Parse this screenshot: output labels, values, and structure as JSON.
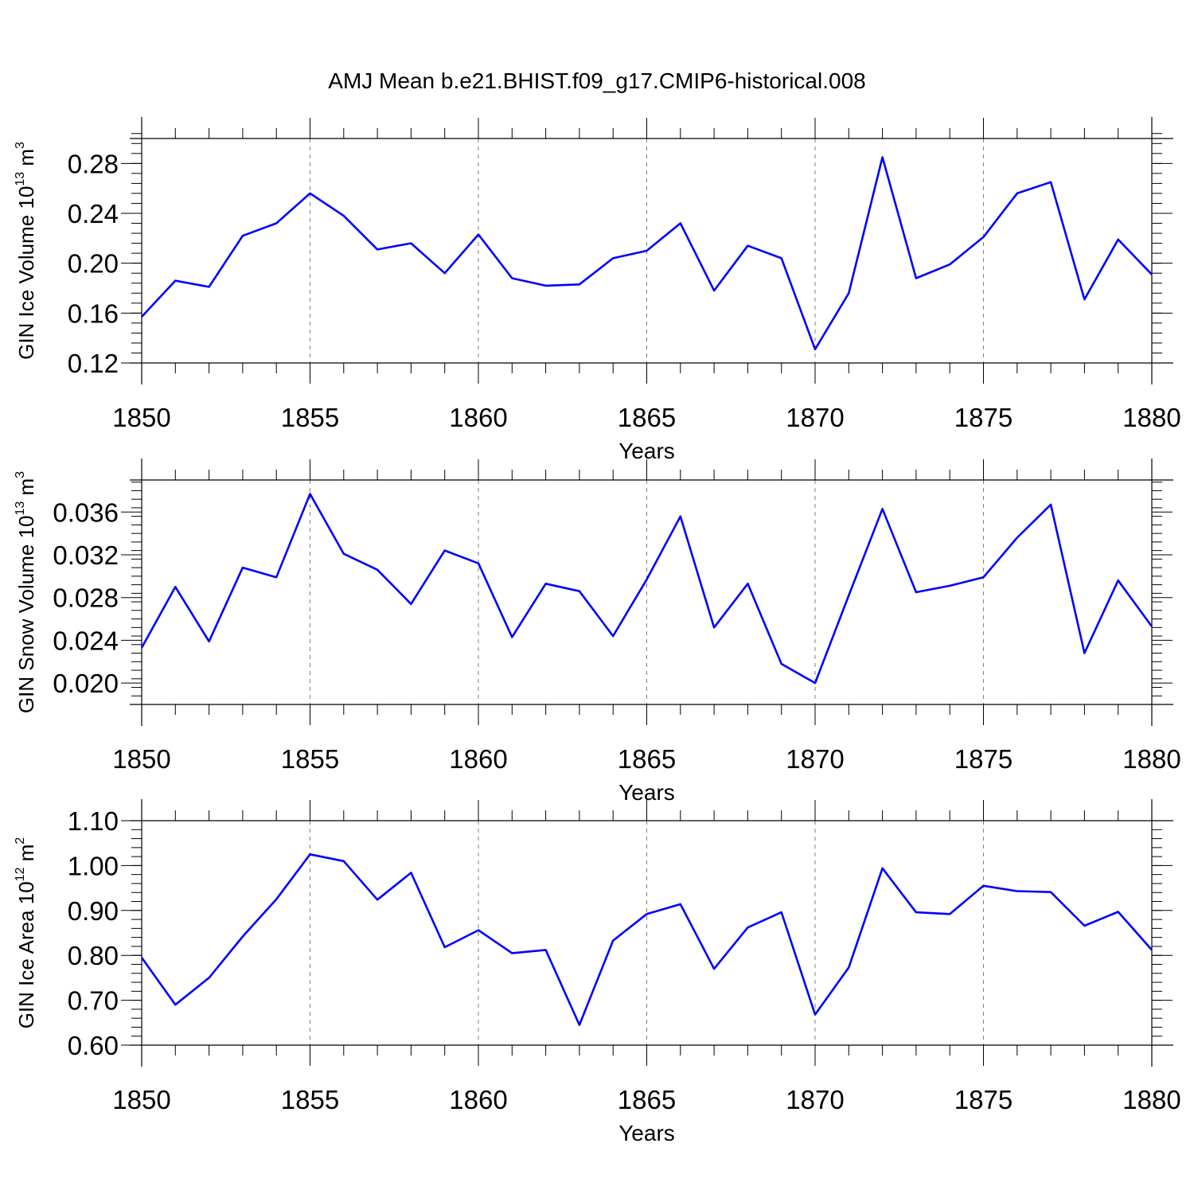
{
  "title": "AMJ Mean b.e21.BHIST.f09_g17.CMIP6-historical.008",
  "colors": {
    "line": "#0000ff",
    "axis": "#000000",
    "grid": "#7f7f7f",
    "background": "#ffffff"
  },
  "chart_data": [
    {
      "type": "line",
      "xlabel": "Years",
      "ylabel": {
        "text": "GIN Ice Volume 10",
        "exponent": "13",
        "unit": " m",
        "unit_exponent": "3"
      },
      "xlim": [
        1850,
        1880
      ],
      "ylim": [
        0.12,
        0.3
      ],
      "x_ticks": [
        1850,
        1855,
        1860,
        1865,
        1870,
        1875,
        1880
      ],
      "x_tick_labels": [
        "1850",
        "1855",
        "1860",
        "1865",
        "1870",
        "1875",
        "1880"
      ],
      "y_ticks": [
        0.12,
        0.16,
        0.2,
        0.24,
        0.28
      ],
      "y_tick_labels": [
        "0.12",
        "0.16",
        "0.20",
        "0.24",
        "0.28"
      ],
      "y_minor_step": 0.008,
      "grid": "vertical dashed at major x ticks",
      "x": [
        1850,
        1851,
        1852,
        1853,
        1854,
        1855,
        1856,
        1857,
        1858,
        1859,
        1860,
        1861,
        1862,
        1863,
        1864,
        1865,
        1866,
        1867,
        1868,
        1869,
        1870,
        1871,
        1872,
        1873,
        1874,
        1875,
        1876,
        1877,
        1878,
        1879,
        1880
      ],
      "series": [
        {
          "values": [
            0.157,
            0.186,
            0.181,
            0.222,
            0.232,
            0.256,
            0.238,
            0.211,
            0.216,
            0.192,
            0.223,
            0.188,
            0.182,
            0.183,
            0.204,
            0.21,
            0.232,
            0.178,
            0.214,
            0.204,
            0.131,
            0.176,
            0.285,
            0.188,
            0.199,
            0.221,
            0.256,
            0.265,
            0.171,
            0.219,
            0.191
          ]
        }
      ]
    },
    {
      "type": "line",
      "xlabel": "Years",
      "ylabel": {
        "text": "GIN Snow Volume 10",
        "exponent": "13",
        "unit": " m",
        "unit_exponent": "3"
      },
      "xlim": [
        1850,
        1880
      ],
      "ylim": [
        0.018,
        0.039
      ],
      "x_ticks": [
        1850,
        1855,
        1860,
        1865,
        1870,
        1875,
        1880
      ],
      "x_tick_labels": [
        "1850",
        "1855",
        "1860",
        "1865",
        "1870",
        "1875",
        "1880"
      ],
      "y_ticks": [
        0.02,
        0.024,
        0.028,
        0.032,
        0.036
      ],
      "y_tick_labels": [
        "0.020",
        "0.024",
        "0.028",
        "0.032",
        "0.036"
      ],
      "y_minor_step": 0.0008,
      "grid": "vertical dashed at major x ticks",
      "x": [
        1850,
        1851,
        1852,
        1853,
        1854,
        1855,
        1856,
        1857,
        1858,
        1859,
        1860,
        1861,
        1862,
        1863,
        1864,
        1865,
        1866,
        1867,
        1868,
        1869,
        1870,
        1871,
        1872,
        1873,
        1874,
        1875,
        1876,
        1877,
        1878,
        1879,
        1880
      ],
      "series": [
        {
          "values": [
            0.0233,
            0.029,
            0.0239,
            0.0308,
            0.0299,
            0.0377,
            0.0321,
            0.0306,
            0.0274,
            0.0324,
            0.0312,
            0.0243,
            0.0293,
            0.0286,
            0.0244,
            0.0297,
            0.0356,
            0.0252,
            0.0293,
            0.0218,
            0.02,
            0.0282,
            0.0363,
            0.0285,
            0.0291,
            0.0299,
            0.0336,
            0.0367,
            0.0228,
            0.0296,
            0.0253
          ]
        }
      ]
    },
    {
      "type": "line",
      "xlabel": "Years",
      "ylabel": {
        "text": "GIN Ice Area 10",
        "exponent": "12",
        "unit": " m",
        "unit_exponent": "2"
      },
      "xlim": [
        1850,
        1880
      ],
      "ylim": [
        0.6,
        1.1
      ],
      "x_ticks": [
        1850,
        1855,
        1860,
        1865,
        1870,
        1875,
        1880
      ],
      "x_tick_labels": [
        "1850",
        "1855",
        "1860",
        "1865",
        "1870",
        "1875",
        "1880"
      ],
      "y_ticks": [
        0.6,
        0.7,
        0.8,
        0.9,
        1.0,
        1.1
      ],
      "y_tick_labels": [
        "0.60",
        "0.70",
        "0.80",
        "0.90",
        "1.00",
        "1.10"
      ],
      "y_minor_step": 0.02,
      "grid": "vertical dashed at major x ticks",
      "x": [
        1850,
        1851,
        1852,
        1853,
        1854,
        1855,
        1856,
        1857,
        1858,
        1859,
        1860,
        1861,
        1862,
        1863,
        1864,
        1865,
        1866,
        1867,
        1868,
        1869,
        1870,
        1871,
        1872,
        1873,
        1874,
        1875,
        1876,
        1877,
        1878,
        1879,
        1880
      ],
      "series": [
        {
          "values": [
            0.795,
            0.69,
            0.75,
            0.842,
            0.925,
            1.025,
            1.01,
            0.924,
            0.984,
            0.818,
            0.856,
            0.805,
            0.812,
            0.645,
            0.833,
            0.892,
            0.914,
            0.77,
            0.862,
            0.896,
            0.668,
            0.773,
            0.994,
            0.896,
            0.892,
            0.955,
            0.943,
            0.941,
            0.866,
            0.897,
            0.812
          ]
        }
      ]
    }
  ]
}
